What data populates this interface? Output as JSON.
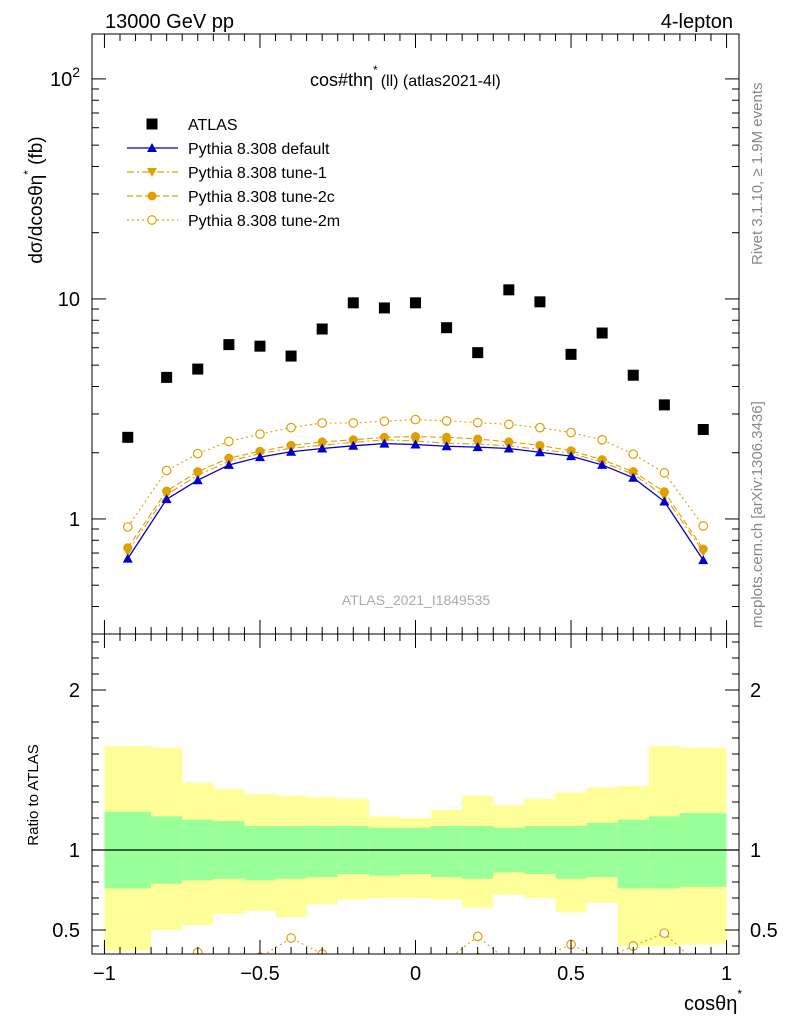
{
  "header": {
    "left": "13000 GeV pp",
    "right": "4-lepton"
  },
  "side_labels": {
    "rivet": "Rivet 3.1.10, ≥ 1.9M events",
    "mcplots": "mcplots.cern.ch [arXiv:1306.3436]"
  },
  "chart_data": [
    {
      "panel": "main",
      "type": "scatter",
      "title_main": "cos#thη",
      "title_sup": "*",
      "title_tail": "(ll) (atlas2021-4l)",
      "watermark": "ATLAS_2021_I1849535",
      "ylabel_main": "dσ/dcosθη",
      "ylabel_sup": "*",
      "ylabel_tail": " (fb)",
      "yscale": "log",
      "xlim": [
        -1.04,
        1.04
      ],
      "ylim": [
        0.3,
        160
      ],
      "yticks": [
        {
          "value": 1,
          "label": "1"
        },
        {
          "value": 10,
          "label": "10"
        },
        {
          "value": 100,
          "label": "10",
          "sup": "2"
        }
      ],
      "grid": false,
      "legend_position": "top-left",
      "x": [
        -0.925,
        -0.8,
        -0.7,
        -0.6,
        -0.5,
        -0.4,
        -0.3,
        -0.2,
        -0.1,
        0.0,
        0.1,
        0.2,
        0.3,
        0.4,
        0.5,
        0.6,
        0.7,
        0.8,
        0.925
      ],
      "series": [
        {
          "name": "ATLAS",
          "marker": "square",
          "color": "#000000",
          "line": "none",
          "values": [
            2.35,
            4.4,
            4.8,
            6.2,
            6.1,
            5.5,
            7.3,
            9.6,
            9.1,
            9.6,
            7.4,
            5.7,
            11.0,
            9.7,
            5.6,
            7.0,
            4.5,
            3.3,
            2.55
          ]
        },
        {
          "name": "Pythia 8.308 default",
          "marker": "triangle-up",
          "color": "#0000cc",
          "line": "solid",
          "values": [
            0.66,
            1.23,
            1.5,
            1.76,
            1.91,
            2.02,
            2.09,
            2.15,
            2.2,
            2.18,
            2.14,
            2.12,
            2.09,
            2.01,
            1.93,
            1.76,
            1.54,
            1.2,
            0.65
          ]
        },
        {
          "name": "Pythia 8.308 tune-1",
          "marker": "triangle-down",
          "color": "#e0a000",
          "line": "dashdot",
          "values": [
            0.71,
            1.29,
            1.58,
            1.83,
            1.98,
            2.1,
            2.16,
            2.23,
            2.29,
            2.26,
            2.21,
            2.19,
            2.15,
            2.07,
            1.99,
            1.81,
            1.6,
            1.27,
            0.71
          ]
        },
        {
          "name": "Pythia 8.308 tune-2c",
          "marker": "circle",
          "color": "#e0a000",
          "line": "dashed",
          "values": [
            0.74,
            1.34,
            1.64,
            1.89,
            2.03,
            2.16,
            2.24,
            2.29,
            2.35,
            2.37,
            2.35,
            2.31,
            2.24,
            2.16,
            2.04,
            1.86,
            1.64,
            1.33,
            0.73
          ]
        },
        {
          "name": "Pythia 8.308 tune-2m",
          "marker": "circle-open",
          "color": "#e0a000",
          "line": "dotted",
          "values": [
            0.92,
            1.66,
            1.98,
            2.25,
            2.43,
            2.6,
            2.73,
            2.73,
            2.78,
            2.83,
            2.79,
            2.74,
            2.69,
            2.6,
            2.47,
            2.29,
            1.97,
            1.62,
            0.93
          ]
        }
      ]
    },
    {
      "panel": "ratio",
      "type": "line",
      "ylabel": "Ratio to ATLAS",
      "xlabel_main": "cosθη",
      "xlabel_sup": "*",
      "xlim": [
        -1.04,
        1.04
      ],
      "ylim": [
        0.35,
        2.35
      ],
      "xticks": [
        {
          "value": -1,
          "label": "−1"
        },
        {
          "value": -0.5,
          "label": "−0.5"
        },
        {
          "value": 0,
          "label": "0"
        },
        {
          "value": 0.5,
          "label": "0.5"
        },
        {
          "value": 1,
          "label": "1"
        }
      ],
      "yticks": [
        {
          "value": 0.5,
          "label": "0.5"
        },
        {
          "value": 1,
          "label": "1"
        },
        {
          "value": 2,
          "label": "2"
        }
      ],
      "reference_line": 1,
      "bins": [
        -1.0,
        -0.85,
        -0.75,
        -0.65,
        -0.55,
        -0.45,
        -0.35,
        -0.25,
        -0.15,
        -0.05,
        0.05,
        0.15,
        0.25,
        0.35,
        0.45,
        0.55,
        0.65,
        0.75,
        0.85,
        1.0
      ],
      "bands": [
        {
          "name": "ATLAS stat",
          "color": "#99ff99",
          "low": [
            0.76,
            0.79,
            0.81,
            0.82,
            0.81,
            0.82,
            0.83,
            0.85,
            0.84,
            0.85,
            0.83,
            0.82,
            0.86,
            0.85,
            0.82,
            0.83,
            0.76,
            0.76,
            0.77
          ],
          "high": [
            1.24,
            1.21,
            1.19,
            1.18,
            1.15,
            1.15,
            1.15,
            1.15,
            1.14,
            1.14,
            1.15,
            1.15,
            1.14,
            1.15,
            1.15,
            1.17,
            1.19,
            1.21,
            1.23
          ]
        },
        {
          "name": "ATLAS total",
          "color": "#ffff99",
          "low": [
            0.37,
            0.5,
            0.53,
            0.6,
            0.62,
            0.58,
            0.66,
            0.69,
            0.7,
            0.7,
            0.69,
            0.64,
            0.72,
            0.7,
            0.61,
            0.67,
            0.4,
            0.4,
            0.41
          ],
          "high": [
            1.65,
            1.64,
            1.42,
            1.38,
            1.35,
            1.34,
            1.33,
            1.32,
            1.21,
            1.2,
            1.25,
            1.34,
            1.28,
            1.32,
            1.36,
            1.39,
            1.4,
            1.65,
            1.64
          ]
        }
      ],
      "series": [
        {
          "name": "Pythia 8.308 tune-2c",
          "marker": "circle",
          "color": "#e0a000",
          "line": "dashed",
          "x": [
            0.1,
            0.2,
            0.3,
            0.7,
            0.8,
            0.9
          ],
          "values": [
            0.3,
            0.33,
            0.2,
            0.3,
            0.33,
            0.28
          ]
        },
        {
          "name": "Pythia 8.308 tune-2m",
          "marker": "circle-open",
          "color": "#e0a000",
          "line": "dotted",
          "x": [
            -0.8,
            -0.7,
            -0.6,
            -0.5,
            -0.4,
            -0.3,
            0.1,
            0.2,
            0.3,
            0.4,
            0.5,
            0.6,
            0.7,
            0.8,
            0.9
          ],
          "values": [
            0.3,
            0.36,
            0.3,
            0.33,
            0.45,
            0.35,
            0.31,
            0.46,
            0.3,
            0.32,
            0.41,
            0.31,
            0.4,
            0.48,
            0.3
          ]
        }
      ]
    }
  ]
}
